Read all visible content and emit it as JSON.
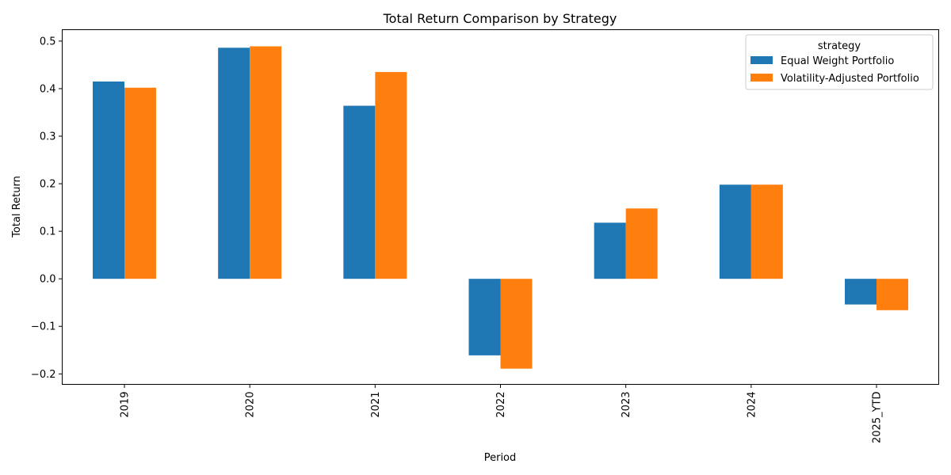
{
  "chart_data": {
    "type": "bar",
    "title": "Total Return Comparison by Strategy",
    "xlabel": "Period",
    "ylabel": "Total Return",
    "categories": [
      "2019",
      "2020",
      "2021",
      "2022",
      "2023",
      "2024",
      "2025_YTD"
    ],
    "series": [
      {
        "name": "Equal Weight Portfolio",
        "color": "#1f77b4",
        "values": [
          0.415,
          0.486,
          0.364,
          -0.161,
          0.118,
          0.198,
          -0.054
        ]
      },
      {
        "name": "Volatility-Adjusted Portfolio",
        "color": "#ff7f0e",
        "values": [
          0.402,
          0.489,
          0.435,
          -0.189,
          0.148,
          0.198,
          -0.066
        ]
      }
    ],
    "ylim": [
      -0.222,
      0.524
    ],
    "yticks": [
      "−0.2",
      "−0.1",
      "0.0",
      "0.1",
      "0.2",
      "0.3",
      "0.4",
      "0.5"
    ],
    "ytick_values": [
      -0.2,
      -0.1,
      0.0,
      0.1,
      0.2,
      0.3,
      0.4,
      0.5
    ],
    "legend": {
      "title": "strategy",
      "placement": "top-right"
    },
    "grid": false
  }
}
